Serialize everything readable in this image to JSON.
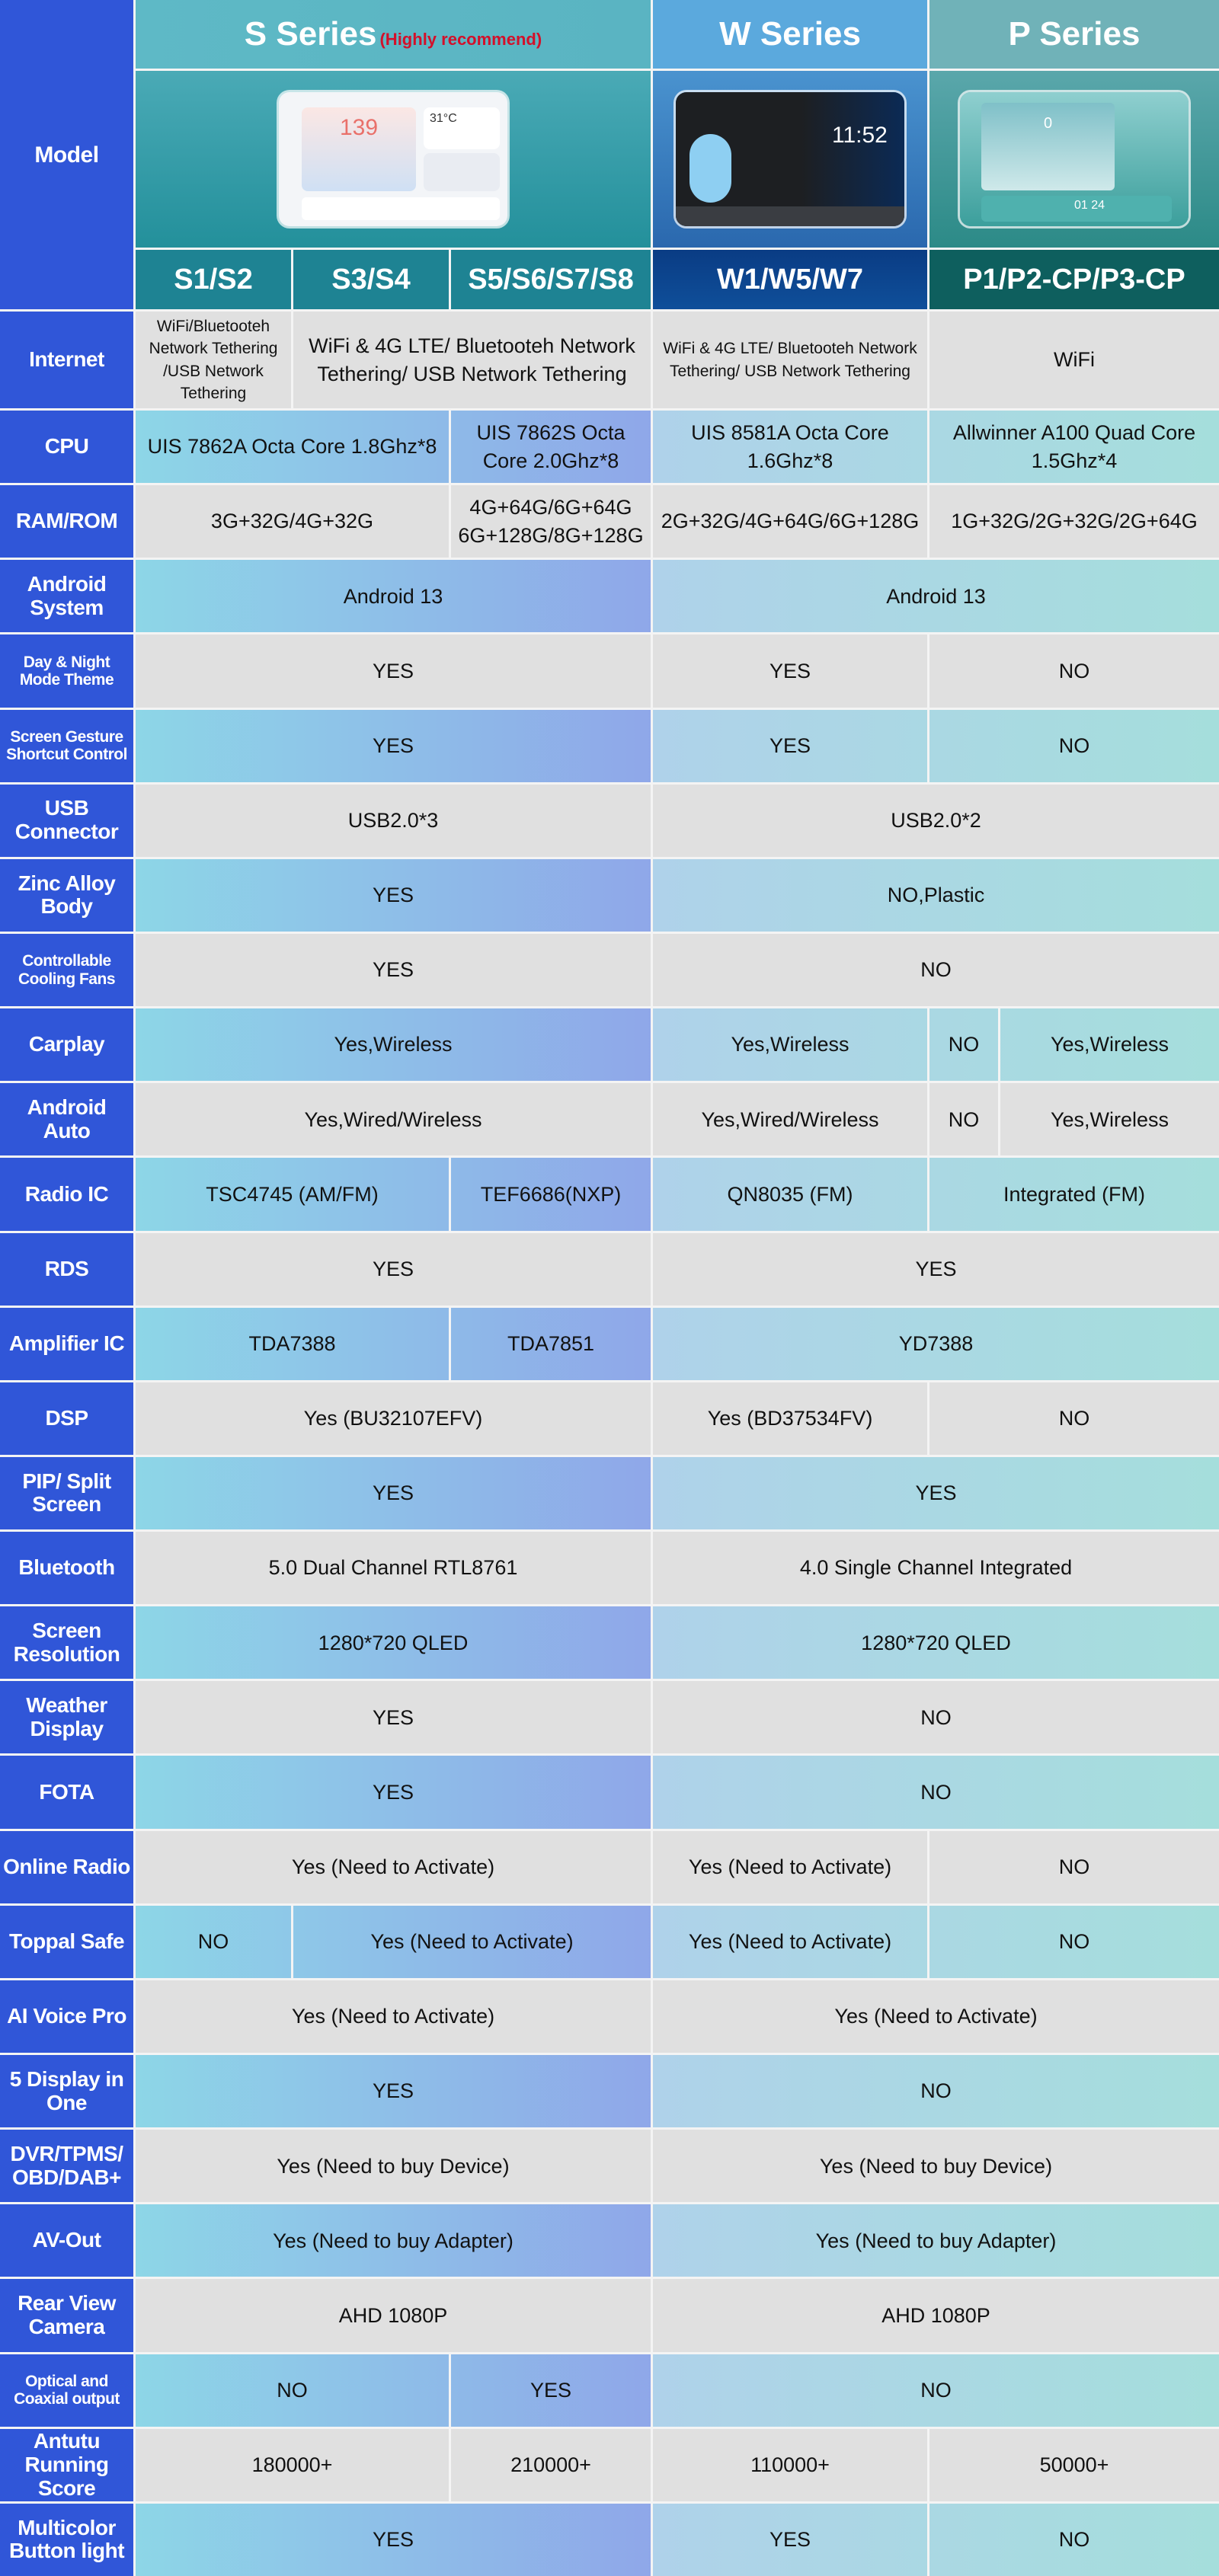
{
  "colors": {
    "label": "#3056d8",
    "gray": "#e0e0e0",
    "s_grad": [
      "#8dd6e7",
      "#8fa7e9"
    ],
    "wp_grad": [
      "#afd2ea",
      "#a5dedc"
    ],
    "highlight": "#d3102a"
  },
  "header": {
    "model_label": "Model",
    "s_series": "S Series",
    "s_note": "(Highly recommend)",
    "w_series": "W Series",
    "p_series": "P Series",
    "models": [
      "S1/S2",
      "S3/S4",
      "S5/S6/S7/S8",
      "W1/W5/W7",
      "P1/P2-CP/P3-CP"
    ],
    "s_screen": {
      "speed": "139",
      "temp": "31°C"
    },
    "w_screen": {
      "time": "11:52"
    },
    "p_screen": {
      "speed": "0",
      "date": "01 24"
    }
  },
  "rows": [
    {
      "label": "Internet",
      "cells": [
        [
          "WiFi/Bluetooteh Network Tethering /USB Network Tethering",
          1,
          "small"
        ],
        [
          "WiFi & 4G LTE/ Bluetooteh Network Tethering/ USB Network Tethering",
          2
        ],
        [
          "WiFi & 4G LTE/ Bluetooteh Network Tethering/ USB Network Tethering",
          1,
          "small"
        ],
        [
          "WiFi",
          2
        ]
      ]
    },
    {
      "label": "CPU",
      "cells": [
        [
          "UIS 7862A Octa Core 1.8Ghz*8",
          2
        ],
        [
          "UIS 7862S Octa Core 2.0Ghz*8",
          1
        ],
        [
          "UIS 8581A Octa Core 1.6Ghz*8",
          1
        ],
        [
          "Allwinner A100 Quad Core 1.5Ghz*4",
          2
        ]
      ]
    },
    {
      "label": "RAM/ROM",
      "cells": [
        [
          "3G+32G/4G+32G",
          2
        ],
        [
          "4G+64G/6G+64G 6G+128G/8G+128G",
          1
        ],
        [
          "2G+32G/4G+64G/6G+128G",
          1
        ],
        [
          "1G+32G/2G+32G/2G+64G",
          2
        ]
      ]
    },
    {
      "label": "Android System",
      "cells": [
        [
          "Android 13",
          3
        ],
        [
          "Android 13",
          3
        ]
      ]
    },
    {
      "label": "Day & Night Mode Theme",
      "small": true,
      "cells": [
        [
          "YES",
          3
        ],
        [
          "YES",
          1
        ],
        [
          "NO",
          2
        ]
      ]
    },
    {
      "label": "Screen Gesture Shortcut Control",
      "small": true,
      "cells": [
        [
          "YES",
          3
        ],
        [
          "YES",
          1
        ],
        [
          "NO",
          2
        ]
      ]
    },
    {
      "label": "USB Connector",
      "cells": [
        [
          "USB2.0*3",
          3
        ],
        [
          "USB2.0*2",
          3
        ]
      ]
    },
    {
      "label": "Zinc Alloy Body",
      "cells": [
        [
          "YES",
          3
        ],
        [
          "NO,Plastic",
          3
        ]
      ]
    },
    {
      "label": "Controllable Cooling Fans",
      "small": true,
      "cells": [
        [
          "YES",
          3
        ],
        [
          "NO",
          3
        ]
      ]
    },
    {
      "label": "Carplay",
      "cells": [
        [
          "Yes,Wireless",
          3
        ],
        [
          "Yes,Wireless",
          1
        ],
        [
          "NO",
          1
        ],
        [
          "Yes,Wireless",
          1
        ]
      ]
    },
    {
      "label": "Android Auto",
      "cells": [
        [
          "Yes,Wired/Wireless",
          3
        ],
        [
          "Yes,Wired/Wireless",
          1
        ],
        [
          "NO",
          1
        ],
        [
          "Yes,Wireless",
          1
        ]
      ]
    },
    {
      "label": "Radio IC",
      "cells": [
        [
          "TSC4745 (AM/FM)",
          2
        ],
        [
          "TEF6686(NXP)",
          1
        ],
        [
          "QN8035 (FM)",
          1
        ],
        [
          "Integrated (FM)",
          2
        ]
      ]
    },
    {
      "label": "RDS",
      "cells": [
        [
          "YES",
          3
        ],
        [
          "YES",
          3
        ]
      ]
    },
    {
      "label": "Amplifier IC",
      "cells": [
        [
          "TDA7388",
          2
        ],
        [
          "TDA7851",
          1
        ],
        [
          "YD7388",
          3
        ]
      ]
    },
    {
      "label": "DSP",
      "cells": [
        [
          "Yes (BU32107EFV)",
          3
        ],
        [
          "Yes (BD37534FV)",
          1
        ],
        [
          "NO",
          2
        ]
      ]
    },
    {
      "label": "PIP/ Split Screen",
      "cells": [
        [
          "YES",
          3
        ],
        [
          "YES",
          3
        ]
      ]
    },
    {
      "label": "Bluetooth",
      "cells": [
        [
          "5.0 Dual Channel RTL8761",
          3
        ],
        [
          "4.0 Single Channel Integrated",
          3
        ]
      ]
    },
    {
      "label": "Screen Resolution",
      "cells": [
        [
          "1280*720 QLED",
          3
        ],
        [
          "1280*720 QLED",
          3
        ]
      ]
    },
    {
      "label": "Weather Display",
      "cells": [
        [
          "YES",
          3
        ],
        [
          "NO",
          3
        ]
      ]
    },
    {
      "label": "FOTA",
      "cells": [
        [
          "YES",
          3
        ],
        [
          "NO",
          3
        ]
      ]
    },
    {
      "label": "Online Radio",
      "cells": [
        [
          "Yes (Need to Activate)",
          3
        ],
        [
          "Yes (Need to Activate)",
          1
        ],
        [
          "NO",
          2
        ]
      ]
    },
    {
      "label": "Toppal Safe",
      "cells": [
        [
          "NO",
          1
        ],
        [
          "Yes (Need to Activate)",
          2
        ],
        [
          "Yes (Need to Activate)",
          1
        ],
        [
          "NO",
          2
        ]
      ]
    },
    {
      "label": "AI Voice Pro",
      "cells": [
        [
          "Yes (Need to Activate)",
          3
        ],
        [
          "Yes (Need to Activate)",
          3
        ]
      ]
    },
    {
      "label": "5 Display in One",
      "cells": [
        [
          "YES",
          3
        ],
        [
          "NO",
          3
        ]
      ]
    },
    {
      "label": "DVR/TPMS/ OBD/DAB+",
      "cells": [
        [
          "Yes (Need to buy Device)",
          3
        ],
        [
          "Yes (Need to buy Device)",
          3
        ]
      ]
    },
    {
      "label": "AV-Out",
      "cells": [
        [
          "Yes (Need to buy Adapter)",
          3
        ],
        [
          "Yes (Need to buy Adapter)",
          3
        ]
      ]
    },
    {
      "label": "Rear View Camera",
      "cells": [
        [
          "AHD 1080P",
          3
        ],
        [
          "AHD 1080P",
          3
        ]
      ]
    },
    {
      "label": "Optical and Coaxial output",
      "small": true,
      "cells": [
        [
          "NO",
          2
        ],
        [
          "YES",
          1
        ],
        [
          "NO",
          3
        ]
      ]
    },
    {
      "label": "Antutu Running Score",
      "cells": [
        [
          "180000+",
          2
        ],
        [
          "210000+",
          1
        ],
        [
          "110000+",
          1
        ],
        [
          "50000+",
          2
        ]
      ]
    },
    {
      "label": "Multicolor Button light",
      "cells": [
        [
          "YES",
          3
        ],
        [
          "YES",
          1
        ],
        [
          "NO",
          2
        ]
      ]
    }
  ]
}
